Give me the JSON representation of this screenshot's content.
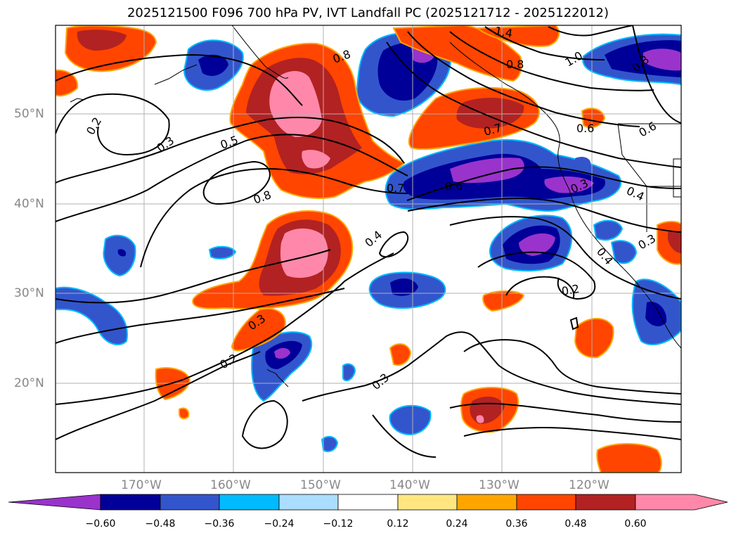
{
  "title": "2025121500 F096 700 hPa PV, IVT Landfall PC (2025121712 - 2025122012)",
  "lat_labels": [
    "50°N",
    "40°N",
    "30°N",
    "20°N"
  ],
  "lon_labels": [
    "170°W",
    "160°W",
    "150°W",
    "140°W",
    "130°W",
    "120°W"
  ],
  "contour_labels": [
    "1.4",
    "0.8",
    "0.8",
    "1.0",
    "0.8",
    "0.6",
    "0.2",
    "0.3",
    "0.5",
    "0.8",
    "0.7",
    "0.6",
    "0.7",
    "0.3",
    "0.4",
    "0.6",
    "0.4",
    "0.3",
    "0.4",
    "0.2",
    "0.3",
    "0.2",
    "0.3"
  ],
  "colorbar": {
    "ticks": [
      "−0.60",
      "−0.48",
      "−0.36",
      "−0.24",
      "−0.12",
      "0.12",
      "0.24",
      "0.36",
      "0.48",
      "0.60"
    ],
    "colors": [
      "#9933cc",
      "#000099",
      "#3355cc",
      "#00bbff",
      "#aaddff",
      "#ffffff",
      "#ffe680",
      "#ffa500",
      "#ff4500",
      "#b22222",
      "#ff88aa"
    ]
  },
  "shading_colors": {
    "neg_outer": "#3355cc",
    "neg_mid": "#000099",
    "neg_inner": "#9933cc",
    "pos_outer": "#ff4500",
    "pos_mid": "#b22222",
    "pos_inner": "#ff88aa",
    "neg_edge": "#00bbff",
    "pos_edge": "#ffa500"
  }
}
